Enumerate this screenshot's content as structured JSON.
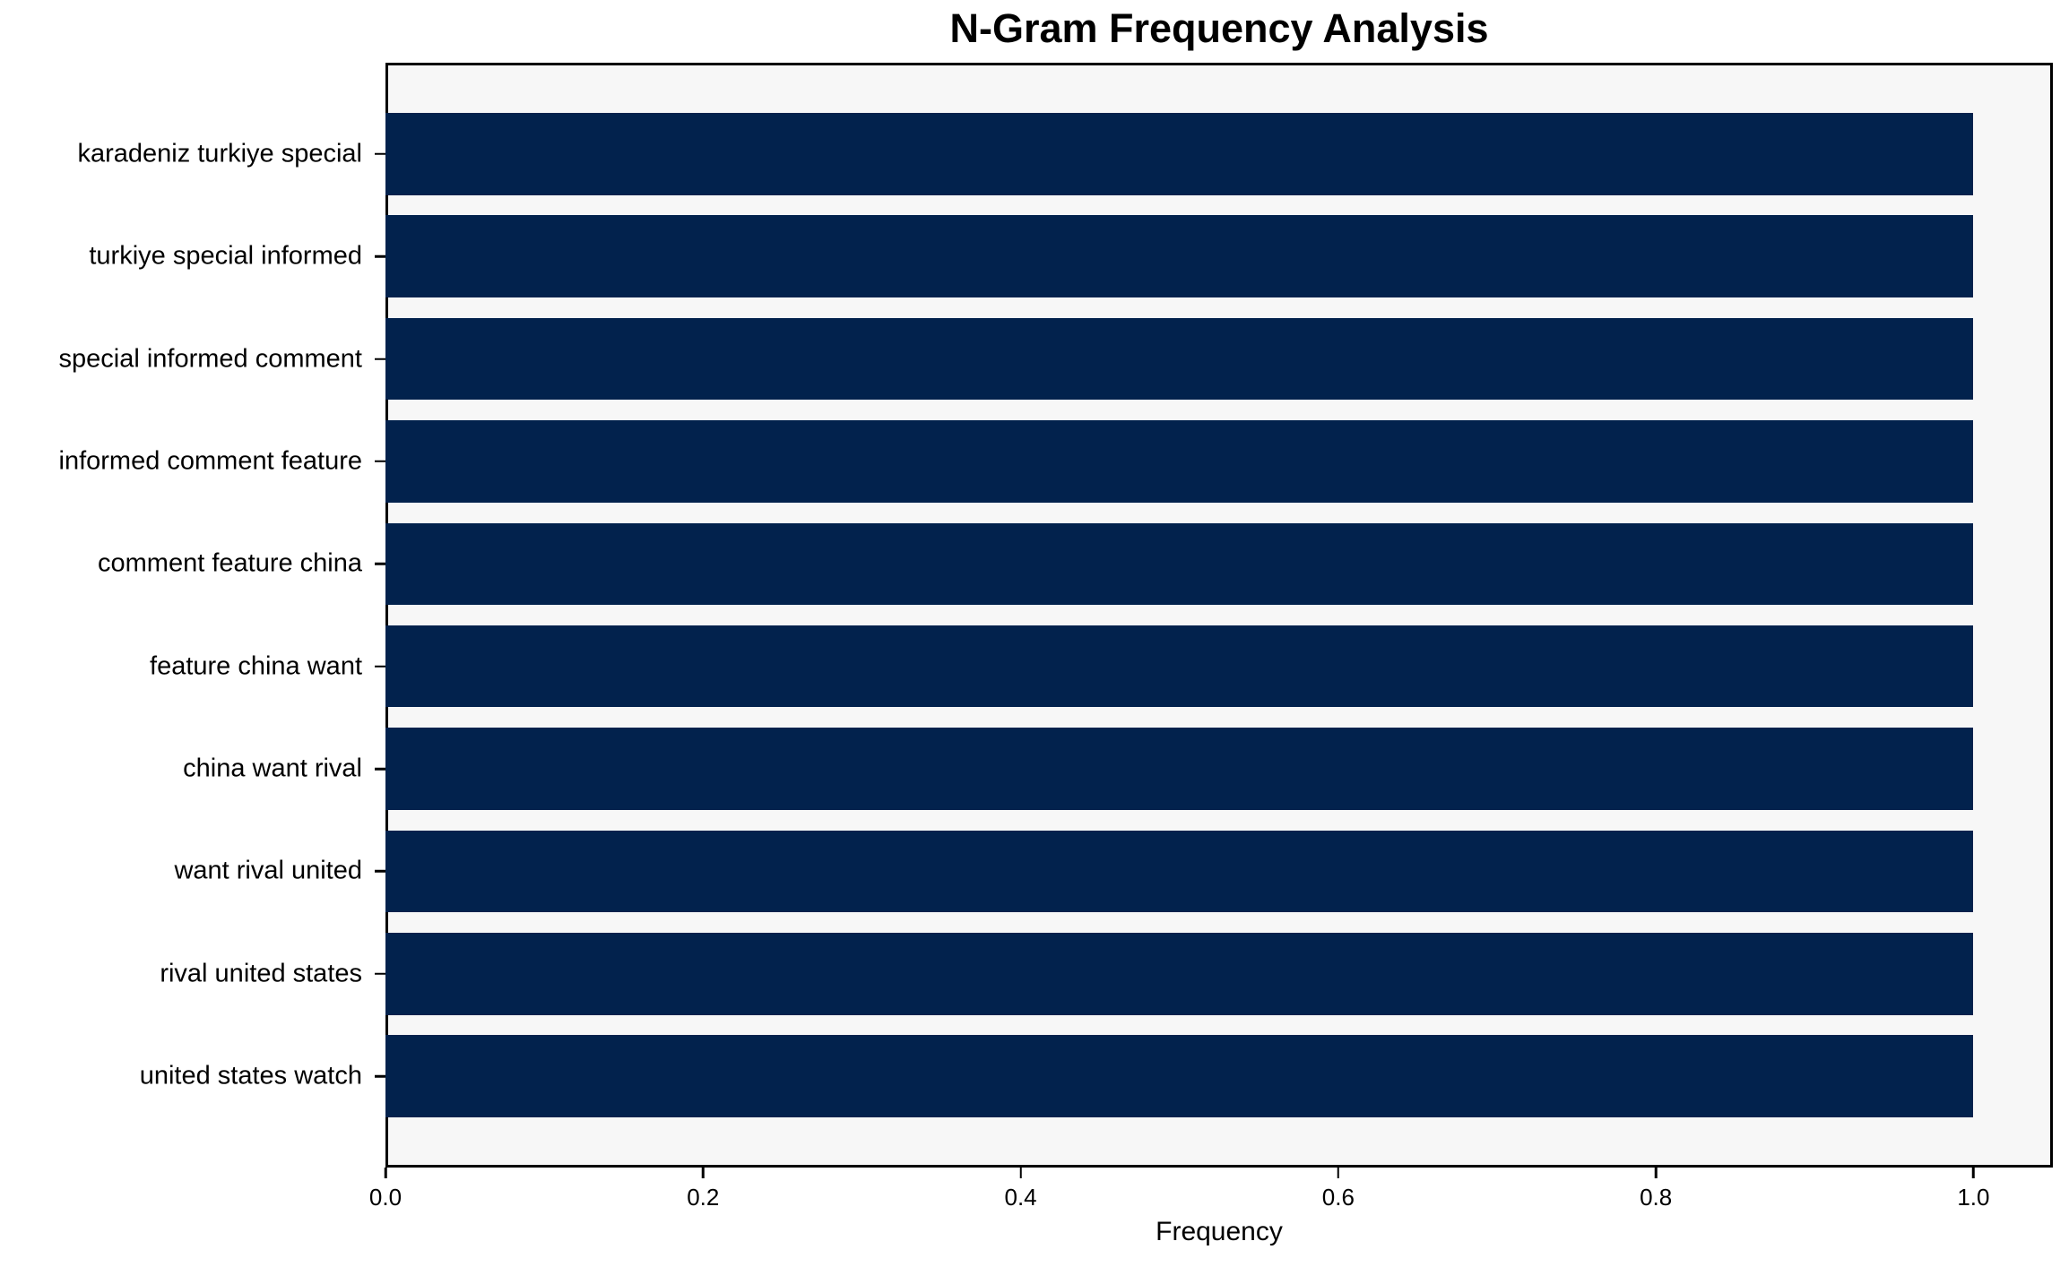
{
  "chart_data": {
    "type": "bar",
    "orientation": "horizontal",
    "title": "N-Gram Frequency Analysis",
    "xlabel": "Frequency",
    "ylabel": "",
    "categories": [
      "karadeniz turkiye special",
      "turkiye special informed",
      "special informed comment",
      "informed comment feature",
      "comment feature china",
      "feature china want",
      "china want rival",
      "want rival united",
      "rival united states",
      "united states watch"
    ],
    "values": [
      1.0,
      1.0,
      1.0,
      1.0,
      1.0,
      1.0,
      1.0,
      1.0,
      1.0,
      1.0
    ],
    "xlim": [
      0,
      1.05
    ],
    "xticks": [
      0.0,
      0.2,
      0.4,
      0.6,
      0.8,
      1.0
    ],
    "xtick_labels": [
      "0.0",
      "0.2",
      "0.4",
      "0.6",
      "0.8",
      "1.0"
    ],
    "grid": false,
    "legend": null,
    "bar_color": "#02224d",
    "plot_background": "#f7f7f7",
    "figure_background": "#ffffff",
    "spine_color": "#000000",
    "bar_height_fraction": 0.8
  }
}
